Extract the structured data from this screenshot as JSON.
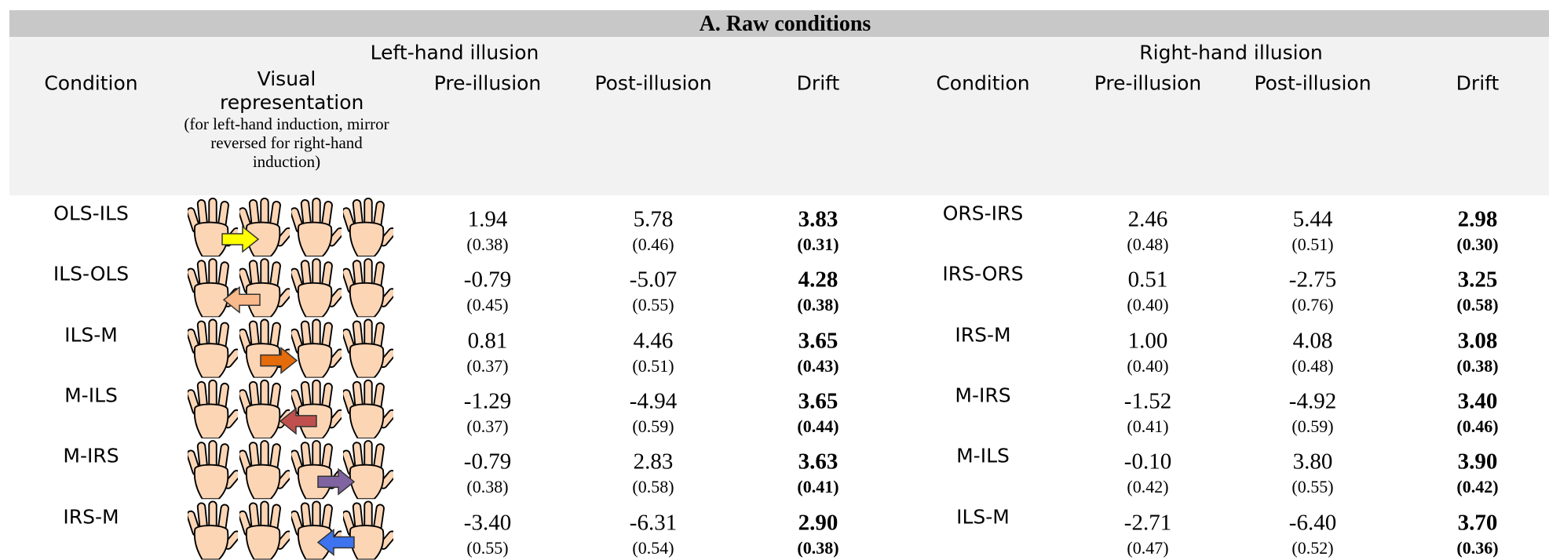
{
  "title": "A. Raw conditions",
  "header": {
    "left": {
      "group": "Left-hand illusion",
      "condition": "Condition",
      "visual": "Visual representation",
      "visual_note": "(for left-hand induction, mirror reversed for right-hand induction)",
      "pre": "Pre-illusion",
      "post": "Post-illusion",
      "drift": "Drift"
    },
    "right": {
      "group": "Right-hand illusion",
      "condition": "Condition",
      "pre": "Pre-illusion",
      "post": "Post-illusion",
      "drift": "Drift"
    }
  },
  "rows": [
    {
      "left": {
        "condition": "OLS-ILS",
        "pre": "1.94",
        "pre_se": "(0.38)",
        "post": "5.78",
        "post_se": "(0.46)",
        "drift": "3.83",
        "drift_se": "(0.31)"
      },
      "right": {
        "condition": "ORS-IRS",
        "pre": "2.46",
        "pre_se": "(0.48)",
        "post": "5.44",
        "post_se": "(0.51)",
        "drift": "2.98",
        "drift_se": "(0.30)"
      }
    },
    {
      "left": {
        "condition": "ILS-OLS",
        "pre": "-0.79",
        "pre_se": "(0.45)",
        "post": "-5.07",
        "post_se": "(0.55)",
        "drift": "4.28",
        "drift_se": "(0.38)"
      },
      "right": {
        "condition": "IRS-ORS",
        "pre": "0.51",
        "pre_se": "(0.40)",
        "post": "-2.75",
        "post_se": "(0.76)",
        "drift": "3.25",
        "drift_se": "(0.58)"
      }
    },
    {
      "left": {
        "condition": "ILS-M",
        "pre": "0.81",
        "pre_se": "(0.37)",
        "post": "4.46",
        "post_se": "(0.51)",
        "drift": "3.65",
        "drift_se": "(0.43)"
      },
      "right": {
        "condition": "IRS-M",
        "pre": "1.00",
        "pre_se": "(0.40)",
        "post": "4.08",
        "post_se": "(0.48)",
        "drift": "3.08",
        "drift_se": "(0.38)"
      }
    },
    {
      "left": {
        "condition": "M-ILS",
        "pre": "-1.29",
        "pre_se": "(0.37)",
        "post": "-4.94",
        "post_se": "(0.59)",
        "drift": "3.65",
        "drift_se": "(0.44)"
      },
      "right": {
        "condition": "M-IRS",
        "pre": "-1.52",
        "pre_se": "(0.41)",
        "post": "-4.92",
        "post_se": "(0.59)",
        "drift": "3.40",
        "drift_se": "(0.46)"
      }
    },
    {
      "left": {
        "condition": "M-IRS",
        "pre": "-0.79",
        "pre_se": "(0.38)",
        "post": "2.83",
        "post_se": "(0.58)",
        "drift": "3.63",
        "drift_se": "(0.41)"
      },
      "right": {
        "condition": "M-ILS",
        "pre": "-0.10",
        "pre_se": "(0.42)",
        "post": "3.80",
        "post_se": "(0.55)",
        "drift": "3.90",
        "drift_se": "(0.42)"
      }
    },
    {
      "left": {
        "condition": "IRS-M",
        "pre": "-3.40",
        "pre_se": "(0.55)",
        "post": "-6.31",
        "post_se": "(0.54)",
        "drift": "2.90",
        "drift_se": "(0.38)"
      },
      "right": {
        "condition": "ILS-M",
        "pre": "-2.71",
        "pre_se": "(0.47)",
        "post": "-6.40",
        "post_se": "(0.52)",
        "drift": "3.70",
        "drift_se": "(0.36)"
      }
    }
  ]
}
